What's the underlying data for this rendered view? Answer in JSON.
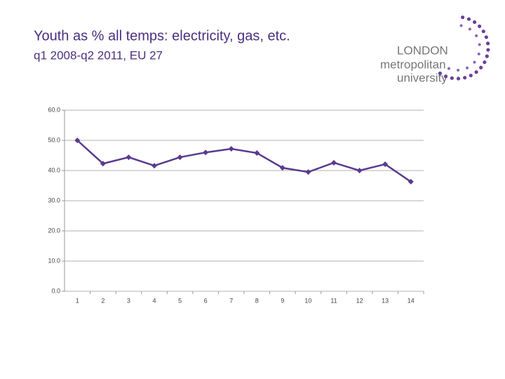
{
  "chart_data": {
    "type": "line",
    "title": "Youth as % all temps: electricity, gas, etc.",
    "subtitle": "q1 2008-q2 2011, EU 27",
    "categories": [
      "1",
      "2",
      "3",
      "4",
      "5",
      "6",
      "7",
      "8",
      "9",
      "10",
      "11",
      "12",
      "13",
      "14"
    ],
    "series": [
      {
        "name": "Youth as % all temps",
        "color": "#5a3a8e",
        "values": [
          50.0,
          42.3,
          44.4,
          41.6,
          44.4,
          46.0,
          47.2,
          45.8,
          40.9,
          39.5,
          42.6,
          40.0,
          42.1,
          36.3
        ]
      }
    ],
    "ylim": [
      0,
      60
    ],
    "yticks": [
      {
        "value": 0,
        "label": "0.0"
      },
      {
        "value": 10,
        "label": "10.0"
      },
      {
        "value": 20,
        "label": "20.0"
      },
      {
        "value": 30,
        "label": "30.0"
      },
      {
        "value": 40,
        "label": "40.0"
      },
      {
        "value": 50,
        "label": "50.0"
      },
      {
        "value": 60,
        "label": "60.0"
      }
    ],
    "grid": true
  },
  "logo": {
    "lines": [
      "LONDON",
      "metropolitan",
      "university"
    ]
  }
}
